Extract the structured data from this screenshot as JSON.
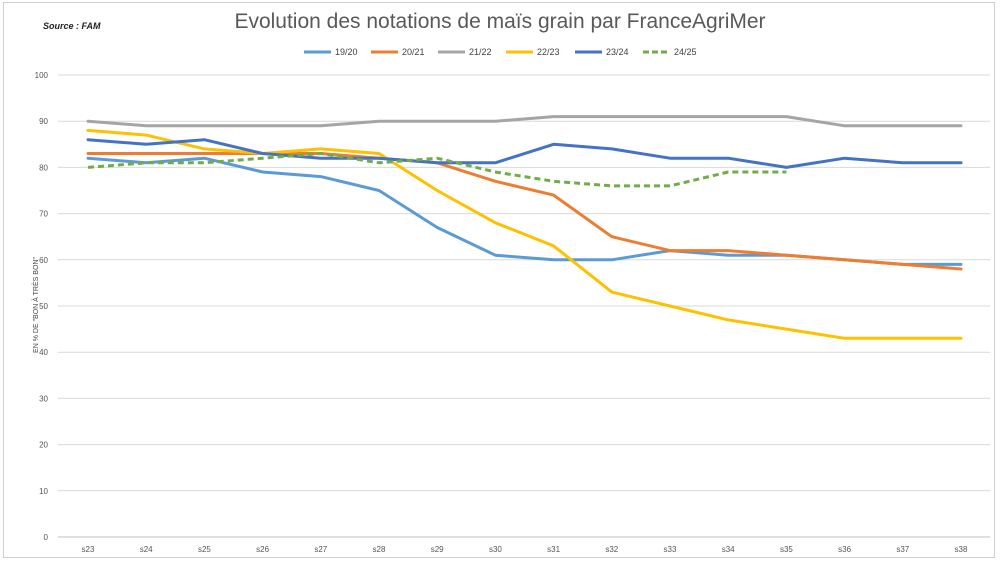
{
  "source": "Source : FAM",
  "chart_data": {
    "type": "line",
    "title": "Evolution des notations de maïs grain par FranceAgriMer",
    "xlabel": "",
    "ylabel": "EN % DE \"BON À TRÈS BON\"",
    "ylim": [
      0,
      100
    ],
    "yticks": [
      "0",
      "10",
      "20",
      "30",
      "40",
      "50",
      "60",
      "70",
      "80",
      "90",
      "100"
    ],
    "categories": [
      "s23",
      "s24",
      "s25",
      "s26",
      "s27",
      "s28",
      "s29",
      "s30",
      "s31",
      "s32",
      "s33",
      "s34",
      "s35",
      "s36",
      "s37",
      "s38"
    ],
    "grid": true,
    "legend_position": "top",
    "series": [
      {
        "name": "19/20",
        "color": "#5b9bd5",
        "dashed": false,
        "values": [
          82,
          81,
          82,
          79,
          78,
          75,
          67,
          61,
          60,
          60,
          62,
          61,
          61,
          60,
          59,
          59
        ]
      },
      {
        "name": "20/21",
        "color": "#ed7d31",
        "dashed": false,
        "values": [
          83,
          83,
          83,
          83,
          83,
          82,
          81,
          77,
          74,
          65,
          62,
          62,
          61,
          60,
          59,
          58
        ]
      },
      {
        "name": "21/22",
        "color": "#a5a5a5",
        "dashed": false,
        "values": [
          90,
          89,
          89,
          89,
          89,
          90,
          90,
          90,
          91,
          91,
          91,
          91,
          91,
          89,
          89,
          89
        ]
      },
      {
        "name": "22/23",
        "color": "#ffc000",
        "dashed": false,
        "values": [
          88,
          87,
          84,
          83,
          84,
          83,
          75,
          68,
          63,
          53,
          50,
          47,
          45,
          43,
          43,
          43
        ]
      },
      {
        "name": "23/24",
        "color": "#4472c4",
        "dashed": false,
        "values": [
          86,
          85,
          86,
          83,
          82,
          82,
          81,
          81,
          85,
          84,
          82,
          82,
          80,
          82,
          81,
          81
        ]
      },
      {
        "name": "24/25",
        "color": "#70ad47",
        "dashed": true,
        "values": [
          80,
          81,
          81,
          82,
          83,
          81,
          82,
          79,
          77,
          76,
          76,
          79,
          79,
          null,
          null,
          null
        ]
      }
    ]
  }
}
